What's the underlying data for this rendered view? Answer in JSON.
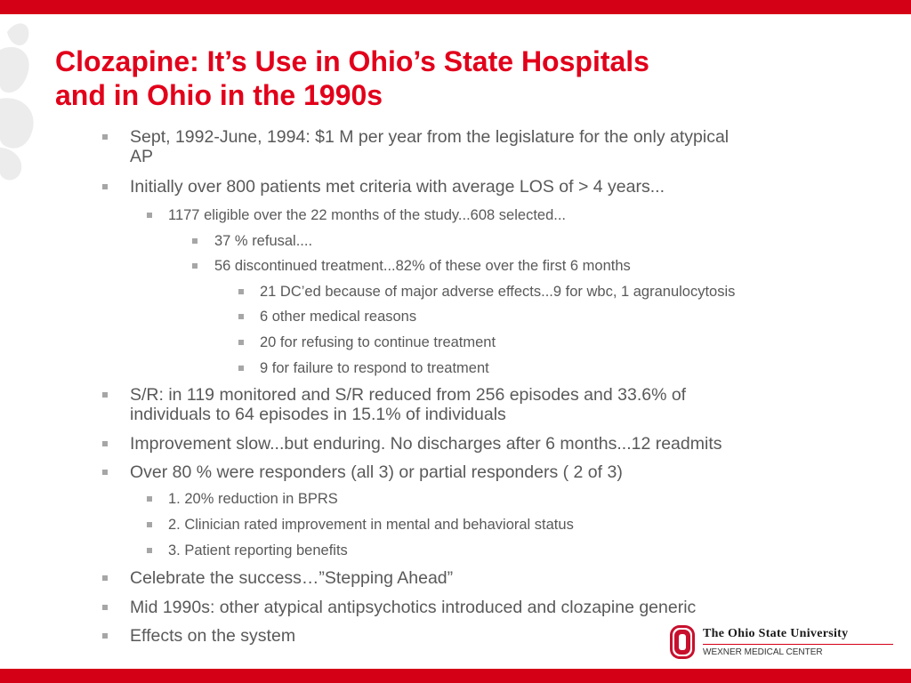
{
  "slide": {
    "title_line1": "Clozapine: It’s Use in Ohio’s State Hospitals",
    "title_line2": "and in Ohio in the 1990s",
    "bullets": [
      {
        "level": 1,
        "lines": [
          "Sept, 1992-June, 1994:  $1 M per year from the legislature for the only atypical",
          "AP"
        ]
      },
      {
        "level": 1,
        "lines": [
          "Initially over 800 patients met criteria with average LOS of > 4 years..."
        ]
      },
      {
        "level": 2,
        "lines": [
          "1177 eligible over the 22 months of the study...608 selected..."
        ]
      },
      {
        "level": 3,
        "lines": [
          "37 % refusal...."
        ]
      },
      {
        "level": 3,
        "lines": [
          "56 discontinued treatment...82% of these over the first 6 months"
        ]
      },
      {
        "level": 4,
        "lines": [
          "21 DC’ed because of major adverse effects...9 for wbc, 1 agranulocytosis"
        ]
      },
      {
        "level": 4,
        "lines": [
          "6 other medical reasons"
        ]
      },
      {
        "level": 4,
        "lines": [
          "20 for refusing to continue treatment"
        ]
      },
      {
        "level": 4,
        "lines": [
          "9 for failure to respond to treatment"
        ]
      },
      {
        "level": 1,
        "lines": [
          "S/R: in 119 monitored and S/R reduced from 256 episodes and 33.6% of",
          "individuals to 64 episodes in 15.1% of individuals"
        ]
      },
      {
        "level": 1,
        "lines": [
          "Improvement slow...but enduring. No discharges after 6 months...12 readmits"
        ]
      },
      {
        "level": 1,
        "lines": [
          "Over 80 % were responders (all 3) or partial responders ( 2 of 3)"
        ]
      },
      {
        "level": 2,
        "lines": [
          "1. 20% reduction in BPRS"
        ]
      },
      {
        "level": 2,
        "lines": [
          "2. Clinician rated improvement in mental and behavioral status"
        ]
      },
      {
        "level": 2,
        "lines": [
          "3. Patient reporting benefits"
        ]
      },
      {
        "level": 1,
        "lines": [
          "Celebrate the success…”Stepping Ahead”"
        ]
      },
      {
        "level": 1,
        "lines": [
          "Mid 1990s:  other atypical antipsychotics introduced and clozapine generic"
        ]
      },
      {
        "level": 1,
        "lines": [
          "Effects on the system"
        ]
      }
    ]
  },
  "logo": {
    "university": "The Ohio State University",
    "center": "WEXNER MEDICAL CENTER"
  },
  "colors": {
    "brand_red": "#d40016",
    "title_red": "#e2001a",
    "body_text": "#595959",
    "bullet_gray": "#a6a6a6"
  }
}
